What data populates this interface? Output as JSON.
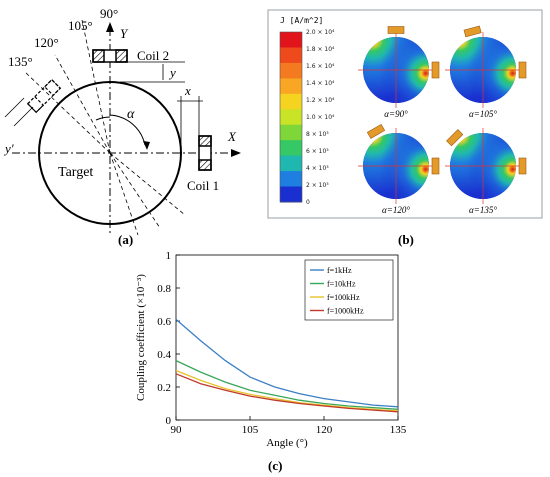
{
  "panel_a": {
    "label": "(a)",
    "angle_labels": [
      "90°",
      "105°",
      "120°",
      "135°"
    ],
    "axis_y": "Y",
    "axis_x": "X",
    "coil2": "Coil 2",
    "coil1": "Coil 1",
    "target": "Target",
    "dim_y": "y",
    "dim_x": "x",
    "dim_y_prime": "y′",
    "alpha": "α"
  },
  "panel_b": {
    "label": "(b)",
    "legend_title": "J [A/m^2]",
    "legend_values": [
      "2.0 × 10⁴",
      "1.8 × 10⁴",
      "1.6 × 10⁴",
      "1.4 × 10⁴",
      "1.2 × 10⁴",
      "1.0 × 10⁴",
      "8 × 10³",
      "6 × 10³",
      "4 × 10³",
      "2 × 10³",
      "0"
    ],
    "legend_colors": [
      "#e0141a",
      "#ee4a1c",
      "#f47a1f",
      "#f8a623",
      "#f5d321",
      "#c9e326",
      "#7fd638",
      "#34c866",
      "#20b7b0",
      "#1f7fe0",
      "#1a2fd0"
    ],
    "captions": [
      "α=90°",
      "α=105°",
      "α=120°",
      "α=135°"
    ]
  },
  "panel_c": {
    "label": "(c)"
  },
  "chart_data": {
    "type": "line",
    "xlabel": "Angle (°)",
    "ylabel": "Coupling coefficient (×10⁻³)",
    "xlim": [
      90,
      135
    ],
    "ylim": [
      0,
      1
    ],
    "xticks": [
      "90",
      "105",
      "120",
      "135"
    ],
    "yticks": [
      "0",
      "0.2",
      "0.4",
      "0.6",
      "0.8",
      "1"
    ],
    "grid": false,
    "legend_position": "top-right",
    "x": [
      90,
      95,
      100,
      105,
      110,
      115,
      120,
      125,
      130,
      135
    ],
    "series": [
      {
        "name": "f=1kHz",
        "color": "#3c7fc4",
        "values": [
          0.61,
          0.48,
          0.36,
          0.26,
          0.2,
          0.16,
          0.13,
          0.11,
          0.09,
          0.08
        ]
      },
      {
        "name": "f=10kHz",
        "color": "#3aa65a",
        "values": [
          0.36,
          0.29,
          0.23,
          0.18,
          0.15,
          0.12,
          0.1,
          0.085,
          0.075,
          0.065
        ]
      },
      {
        "name": "f=100kHz",
        "color": "#e8c22a",
        "values": [
          0.3,
          0.24,
          0.19,
          0.155,
          0.13,
          0.105,
          0.09,
          0.075,
          0.065,
          0.055
        ]
      },
      {
        "name": "f=1000kHz",
        "color": "#c0392b",
        "values": [
          0.28,
          0.22,
          0.18,
          0.145,
          0.12,
          0.1,
          0.085,
          0.07,
          0.06,
          0.05
        ]
      }
    ]
  }
}
